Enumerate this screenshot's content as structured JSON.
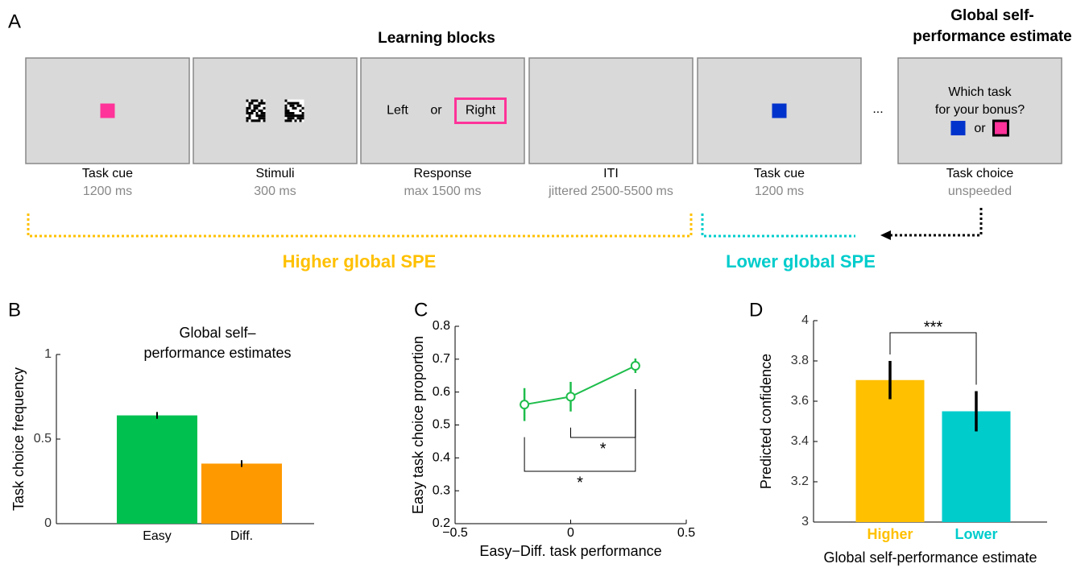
{
  "panel_a": {
    "label": "A",
    "title": "Learning blocks",
    "side_title": [
      "Global self-",
      "performance estimate"
    ],
    "screens": [
      {
        "caption": "Task cue",
        "duration": "1200 ms"
      },
      {
        "caption": "Stimuli",
        "duration": "300 ms"
      },
      {
        "caption": "Response",
        "duration": "max 1500 ms",
        "options": [
          "Left",
          "or",
          "Right"
        ]
      },
      {
        "caption": "ITI",
        "duration": "jittered 2500-5500 ms"
      },
      {
        "caption": "Task cue",
        "duration": "1200 ms"
      },
      {
        "caption": "Task choice",
        "duration": "unspeeded",
        "question": [
          "Which task",
          "for your bonus?"
        ],
        "or": "or"
      }
    ],
    "ellipsis": "...",
    "higher_label": "Higher global SPE",
    "lower_label": "Lower global SPE"
  },
  "chart_data": [
    {
      "type": "bar",
      "label": "B",
      "title": [
        "Global self–",
        "performance estimates"
      ],
      "ylabel": "Task choice frequency",
      "categories": [
        "Easy",
        "Diff."
      ],
      "values": [
        0.64,
        0.355
      ],
      "errors": [
        0.02,
        0.02
      ],
      "colors": [
        "#00c050",
        "#ff9900"
      ],
      "ylim": [
        0,
        1
      ],
      "yticks": [
        0,
        0.5,
        1
      ]
    },
    {
      "type": "line",
      "label": "C",
      "xlabel": "Easy−Diff. task performance",
      "ylabel": "Easy task choice proportion",
      "x": [
        -0.2,
        0,
        0.28
      ],
      "series": [
        {
          "color": "#1ebd4b",
          "values": [
            0.562,
            0.586,
            0.68
          ],
          "errors": [
            0.05,
            0.045,
            0.022
          ]
        }
      ],
      "xlim": [
        -0.5,
        0.5
      ],
      "xticks": [
        {
          "value": -0.5,
          "label": "−0.5"
        },
        0,
        0.5
      ],
      "ylim": [
        0.2,
        0.8
      ],
      "yticks": [
        0.2,
        0.3,
        0.4,
        0.5,
        0.6,
        0.7,
        0.8
      ],
      "significance": [
        "*",
        "*"
      ]
    },
    {
      "type": "bar",
      "label": "D",
      "ylabel": "Predicted confidence",
      "xlabel": "Global self-performance estimate",
      "categories": [
        "Higher",
        "Lower"
      ],
      "values": [
        3.705,
        3.55
      ],
      "errors": [
        0.095,
        0.1
      ],
      "colors": [
        "#ffc000",
        "#00cccc"
      ],
      "ylim": [
        3,
        4
      ],
      "yticks": [
        3,
        3.2,
        3.4,
        3.6,
        3.8,
        4
      ],
      "significance": "***"
    }
  ]
}
